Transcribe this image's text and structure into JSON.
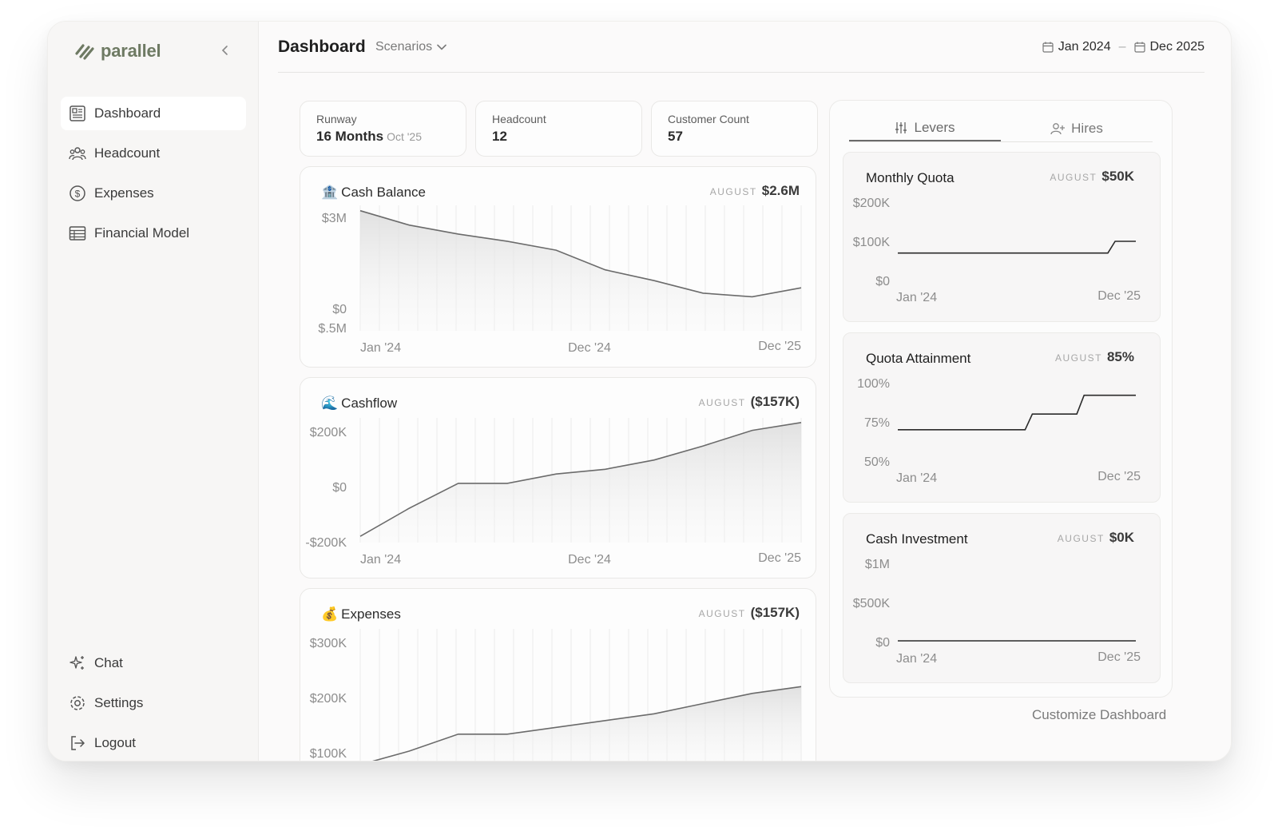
{
  "app": {
    "name": "parallel"
  },
  "sidebar": {
    "items": [
      {
        "label": "Dashboard",
        "icon": "dashboard-icon",
        "active": true
      },
      {
        "label": "Headcount",
        "icon": "people-icon",
        "active": false
      },
      {
        "label": "Expenses",
        "icon": "dollar-circle-icon",
        "active": false
      },
      {
        "label": "Financial Model",
        "icon": "table-icon",
        "active": false
      }
    ],
    "bottom_items": [
      {
        "label": "Chat",
        "icon": "sparkle-icon"
      },
      {
        "label": "Settings",
        "icon": "gear-icon"
      },
      {
        "label": "Logout",
        "icon": "logout-icon"
      }
    ]
  },
  "header": {
    "title": "Dashboard",
    "scenarios_label": "Scenarios",
    "date_start": "Jan 2024",
    "date_sep": "–",
    "date_end": "Dec 2025"
  },
  "metrics": [
    {
      "label": "Runway",
      "value": "16 Months",
      "sub": "Oct '25"
    },
    {
      "label": "Headcount",
      "value": "12",
      "sub": ""
    },
    {
      "label": "Customer Count",
      "value": "57",
      "sub": ""
    }
  ],
  "charts": {
    "cash_balance": {
      "emoji": "🏦",
      "title": "Cash Balance",
      "month": "AUGUST",
      "value": "$2.6M",
      "y_ticks": [
        "$3M",
        "$0",
        "$.5M"
      ],
      "x_ticks": [
        "Jan '24",
        "Dec '24",
        "Dec '25"
      ]
    },
    "cashflow": {
      "emoji": "🌊",
      "title": "Cashflow",
      "month": "AUGUST",
      "value": "($157K)",
      "y_ticks": [
        "$200K",
        "$0",
        "-$200K"
      ],
      "x_ticks": [
        "Jan '24",
        "Dec '24",
        "Dec '25"
      ]
    },
    "expenses": {
      "emoji": "💰",
      "title": "Expenses",
      "month": "AUGUST",
      "value": "($157K)",
      "y_ticks": [
        "$300K",
        "$200K",
        "$100K"
      ]
    }
  },
  "chart_data": [
    {
      "type": "area",
      "title": "Cash Balance",
      "x_range": [
        "Jan '24",
        "Dec '25"
      ],
      "ylim": [
        -0.5,
        3
      ],
      "values": [
        2.85,
        2.45,
        2.2,
        2.0,
        1.75,
        1.2,
        0.9,
        0.55,
        0.45,
        0.7
      ]
    },
    {
      "type": "area",
      "title": "Cashflow",
      "x_range": [
        "Jan '24",
        "Dec '25"
      ],
      "ylim": [
        -200,
        200
      ],
      "values": [
        -180,
        -90,
        -10,
        -10,
        20,
        35,
        65,
        110,
        160,
        185
      ]
    },
    {
      "type": "area",
      "title": "Expenses",
      "x_range": [
        "Jan '24",
        "Dec '25"
      ],
      "ylim": [
        100,
        300
      ],
      "values": [
        100,
        120,
        145,
        145,
        155,
        165,
        175,
        190,
        205,
        215
      ]
    },
    {
      "type": "line",
      "title": "Monthly Quota",
      "x_range": [
        "Jan '24",
        "Dec '25"
      ],
      "ylim": [
        0,
        200
      ],
      "values": [
        70,
        70,
        70,
        70,
        70,
        70,
        70,
        70,
        70,
        70,
        70,
        70,
        70,
        70,
        70,
        70,
        70,
        70,
        70,
        70,
        70,
        100,
        100,
        100
      ]
    },
    {
      "type": "line",
      "title": "Quota Attainment",
      "x_range": [
        "Jan '24",
        "Dec '25"
      ],
      "ylim": [
        50,
        100
      ],
      "values": [
        70,
        70,
        70,
        70,
        70,
        70,
        70,
        70,
        70,
        70,
        70,
        70,
        70,
        80,
        80,
        80,
        80,
        80,
        92,
        92,
        92,
        92,
        92,
        92
      ]
    },
    {
      "type": "line",
      "title": "Cash Investment",
      "x_range": [
        "Jan '24",
        "Dec '25"
      ],
      "ylim": [
        0,
        1000
      ],
      "values": [
        0,
        0,
        0,
        0,
        0,
        0,
        0,
        0,
        0,
        0
      ]
    }
  ],
  "panel": {
    "tabs": [
      {
        "label": "Levers",
        "active": true
      },
      {
        "label": "Hires",
        "active": false
      }
    ],
    "levers": [
      {
        "title": "Monthly Quota",
        "month": "AUGUST",
        "value": "$50K",
        "y_ticks": [
          "$200K",
          "$100K",
          "$0"
        ],
        "x_ticks": [
          "Jan '24",
          "Dec '25"
        ]
      },
      {
        "title": "Quota Attainment",
        "month": "AUGUST",
        "value": "85%",
        "y_ticks": [
          "100%",
          "75%",
          "50%"
        ],
        "x_ticks": [
          "Jan '24",
          "Dec '25"
        ]
      },
      {
        "title": "Cash Investment",
        "month": "AUGUST",
        "value": "$0K",
        "y_ticks": [
          "$1M",
          "$500K",
          "$0"
        ],
        "x_ticks": [
          "Jan '24",
          "Dec '25"
        ]
      }
    ],
    "customize_label": "Customize Dashboard"
  }
}
